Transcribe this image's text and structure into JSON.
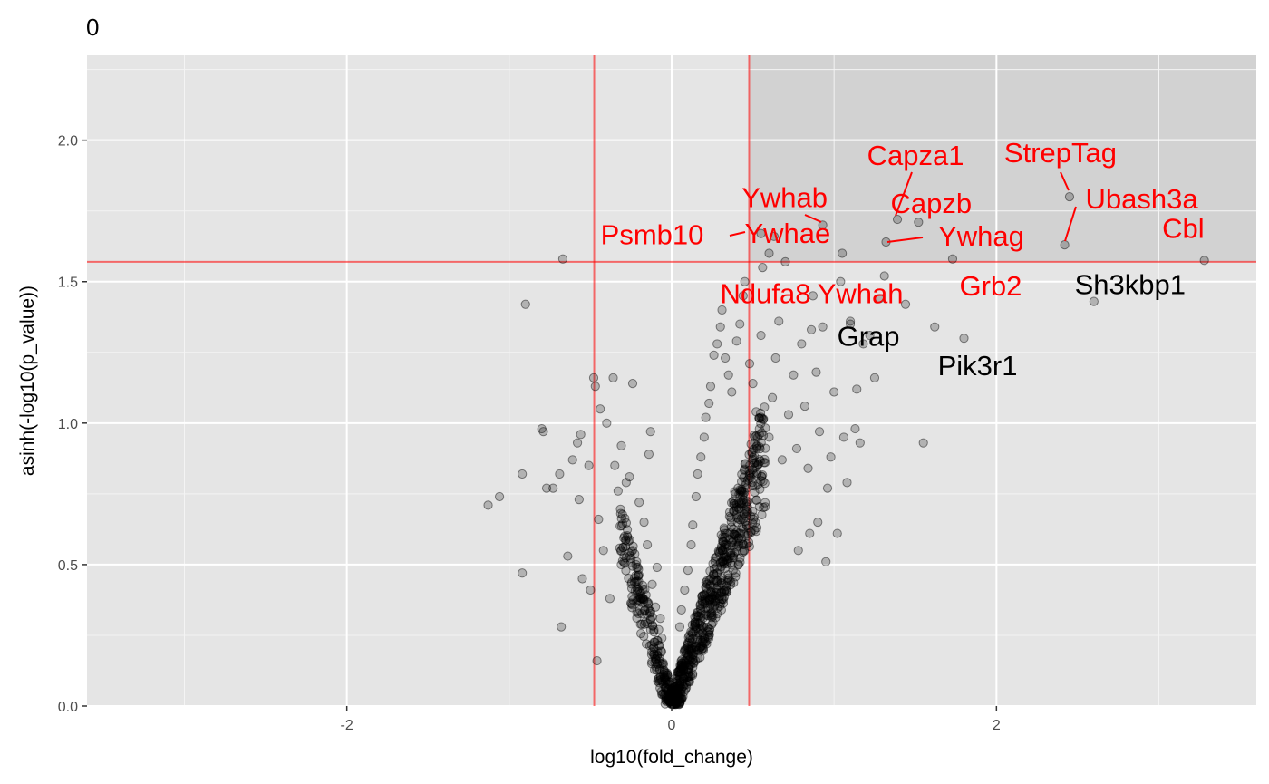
{
  "chart_data": {
    "type": "scatter",
    "title": "0",
    "xlabel": "log10(fold_change)",
    "ylabel": "asinh(-log10(p_value))",
    "xlim": [
      -3.6,
      3.6
    ],
    "ylim": [
      0,
      2.3
    ],
    "x_ticks": [
      -2,
      0,
      2
    ],
    "x_tick_labels": [
      "-2",
      "0",
      "2"
    ],
    "y_ticks": [
      0,
      0.5,
      1,
      1.5,
      2
    ],
    "y_tick_labels": [
      "0.0",
      "0.5",
      "1.0",
      "1.5",
      "2.0"
    ],
    "grid": true,
    "threshold_lines": {
      "x": [
        -0.477,
        0.477
      ],
      "y": 1.57,
      "color": "#ff0000"
    },
    "highlight_region": {
      "x": [
        0.477,
        3.6
      ],
      "y": [
        1.57,
        2.3
      ]
    },
    "point_color": "#000000",
    "point_opacity": 0.22,
    "labeled_points": [
      {
        "name": "Cbl",
        "x": 3.28,
        "y": 1.575,
        "color": "#ff0000"
      },
      {
        "name": "StrepTag",
        "x": 2.45,
        "y": 1.8,
        "color": "#ff0000"
      },
      {
        "name": "Ubash3a",
        "x": 2.42,
        "y": 1.63,
        "color": "#ff0000"
      },
      {
        "name": "Capza1",
        "x": 1.39,
        "y": 1.72,
        "color": "#ff0000"
      },
      {
        "name": "Capzb",
        "x": 1.52,
        "y": 1.71,
        "color": "#ff0000"
      },
      {
        "name": "Ywhag",
        "x": 1.32,
        "y": 1.64,
        "color": "#ff0000"
      },
      {
        "name": "Ywhab",
        "x": 0.93,
        "y": 1.7,
        "color": "#ff0000"
      },
      {
        "name": "Ywhae",
        "x": 0.63,
        "y": 1.66,
        "color": "#ff0000"
      },
      {
        "name": "Psmb10",
        "x": 0.55,
        "y": 1.67,
        "color": "#ff0000"
      },
      {
        "name": "Ndufa8",
        "x": 0.6,
        "y": 1.6,
        "color": "#ff0000"
      },
      {
        "name": "Ywhah",
        "x": 1.05,
        "y": 1.6,
        "color": "#ff0000"
      },
      {
        "name": "Grb2",
        "x": 1.73,
        "y": 1.58,
        "color": "#ff0000"
      },
      {
        "name": "Sh3kbp1",
        "x": 2.6,
        "y": 1.43,
        "color": "#000000"
      },
      {
        "name": "Grap",
        "x": 1.1,
        "y": 1.35,
        "color": "#000000"
      },
      {
        "name": "Pik3r1",
        "x": 1.8,
        "y": 1.3,
        "color": "#000000"
      }
    ],
    "scattered_points": [
      [
        -1.13,
        0.71
      ],
      [
        -1.06,
        0.74
      ],
      [
        -0.92,
        0.82
      ],
      [
        -0.92,
        0.47
      ],
      [
        -0.9,
        1.42
      ],
      [
        -0.8,
        0.98
      ],
      [
        -0.79,
        0.97
      ],
      [
        -0.77,
        0.77
      ],
      [
        -0.73,
        0.77
      ],
      [
        -0.69,
        0.82
      ],
      [
        -0.68,
        0.28
      ],
      [
        -0.67,
        1.58
      ],
      [
        -0.64,
        0.53
      ],
      [
        -0.61,
        0.87
      ],
      [
        -0.58,
        0.93
      ],
      [
        -0.56,
        0.96
      ],
      [
        -0.57,
        0.73
      ],
      [
        -0.55,
        0.45
      ],
      [
        -0.51,
        0.85
      ],
      [
        -0.5,
        0.41
      ],
      [
        -0.48,
        1.16
      ],
      [
        -0.47,
        1.13
      ],
      [
        -0.46,
        0.16
      ],
      [
        -0.45,
        0.66
      ],
      [
        -0.44,
        1.05
      ],
      [
        -0.42,
        0.55
      ],
      [
        -0.4,
        1.0
      ],
      [
        -0.38,
        0.38
      ],
      [
        -0.36,
        1.16
      ],
      [
        -0.35,
        0.85
      ],
      [
        -0.33,
        0.76
      ],
      [
        -0.31,
        0.92
      ],
      [
        -0.29,
        0.6
      ],
      [
        -0.28,
        0.79
      ],
      [
        -0.26,
        0.81
      ],
      [
        -0.24,
        1.14
      ],
      [
        -0.24,
        0.55
      ],
      [
        -0.22,
        0.5
      ],
      [
        -0.2,
        0.72
      ],
      [
        -0.18,
        0.38
      ],
      [
        -0.17,
        0.65
      ],
      [
        -0.15,
        0.57
      ],
      [
        -0.14,
        0.89
      ],
      [
        -0.13,
        0.97
      ],
      [
        -0.12,
        0.43
      ],
      [
        -0.1,
        0.35
      ],
      [
        -0.09,
        0.49
      ],
      [
        -0.08,
        0.27
      ],
      [
        -0.07,
        0.31
      ],
      [
        -0.06,
        0.24
      ],
      [
        0.05,
        0.28
      ],
      [
        0.06,
        0.34
      ],
      [
        0.08,
        0.41
      ],
      [
        0.1,
        0.48
      ],
      [
        0.12,
        0.57
      ],
      [
        0.13,
        0.64
      ],
      [
        0.15,
        0.74
      ],
      [
        0.16,
        0.82
      ],
      [
        0.18,
        0.88
      ],
      [
        0.2,
        0.95
      ],
      [
        0.21,
        1.02
      ],
      [
        0.23,
        1.07
      ],
      [
        0.24,
        1.13
      ],
      [
        0.26,
        1.24
      ],
      [
        0.28,
        1.28
      ],
      [
        0.3,
        1.34
      ],
      [
        0.31,
        1.4
      ],
      [
        0.33,
        1.23
      ],
      [
        0.35,
        1.17
      ],
      [
        0.37,
        1.11
      ],
      [
        0.4,
        1.29
      ],
      [
        0.42,
        1.35
      ],
      [
        0.44,
        1.45
      ],
      [
        0.45,
        1.5
      ],
      [
        0.48,
        1.21
      ],
      [
        0.5,
        1.14
      ],
      [
        0.52,
        1.04
      ],
      [
        0.54,
        0.98
      ],
      [
        0.55,
        1.31
      ],
      [
        0.56,
        1.55
      ],
      [
        0.6,
        0.95
      ],
      [
        0.62,
        1.09
      ],
      [
        0.64,
        1.23
      ],
      [
        0.66,
        1.36
      ],
      [
        0.68,
        0.87
      ],
      [
        0.7,
        1.57
      ],
      [
        0.72,
        1.03
      ],
      [
        0.75,
        1.17
      ],
      [
        0.77,
        0.91
      ],
      [
        0.8,
        1.28
      ],
      [
        0.82,
        1.06
      ],
      [
        0.84,
        0.84
      ],
      [
        0.86,
        1.33
      ],
      [
        0.87,
        1.45
      ],
      [
        0.89,
        1.18
      ],
      [
        0.91,
        0.97
      ],
      [
        0.93,
        1.34
      ],
      [
        0.96,
        0.77
      ],
      [
        0.98,
        0.88
      ],
      [
        1.0,
        1.11
      ],
      [
        1.02,
        0.61
      ],
      [
        1.04,
        1.5
      ],
      [
        1.06,
        0.95
      ],
      [
        1.08,
        0.79
      ],
      [
        1.1,
        1.36
      ],
      [
        1.13,
        0.98
      ],
      [
        1.14,
        1.12
      ],
      [
        1.16,
        0.93
      ],
      [
        1.18,
        1.28
      ],
      [
        1.22,
        1.31
      ],
      [
        1.25,
        1.16
      ],
      [
        1.28,
        1.44
      ],
      [
        1.31,
        1.52
      ],
      [
        1.44,
        1.42
      ],
      [
        1.55,
        0.93
      ],
      [
        1.62,
        1.34
      ],
      [
        0.95,
        0.51
      ],
      [
        0.9,
        0.65
      ],
      [
        0.85,
        0.61
      ],
      [
        0.78,
        0.55
      ]
    ]
  }
}
